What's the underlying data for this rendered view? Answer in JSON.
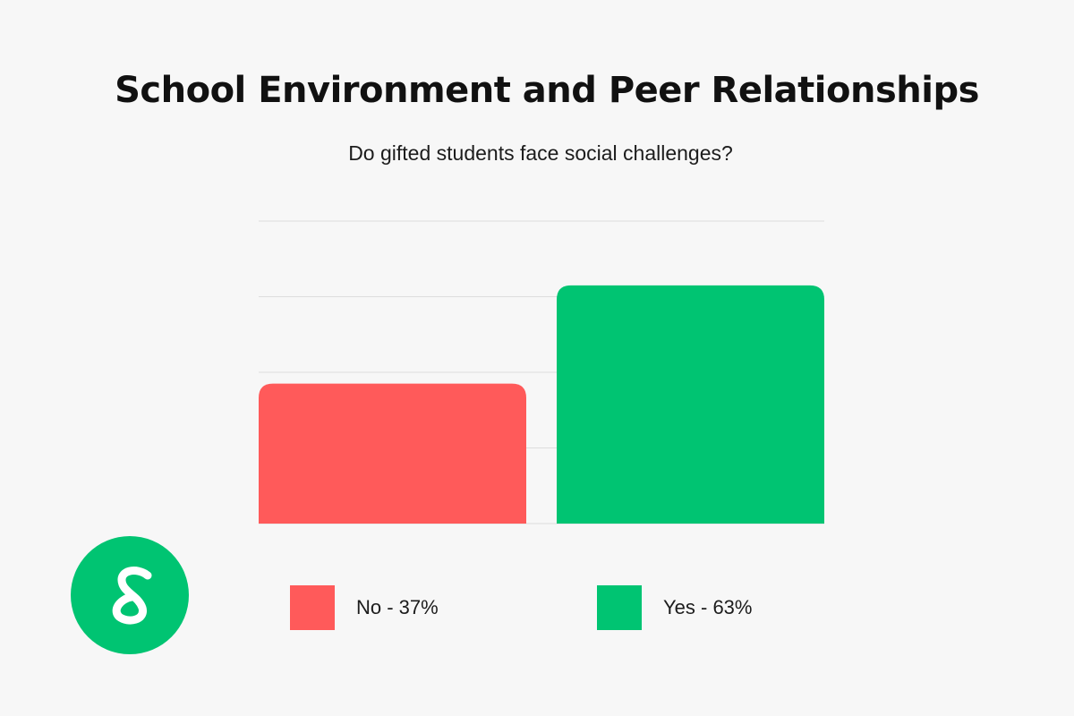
{
  "title": "School Environment and Peer Relationships",
  "subtitle": "Do gifted students face social challenges?",
  "chart_data": {
    "type": "bar",
    "categories": [
      "No",
      "Yes"
    ],
    "values": [
      37,
      63
    ],
    "ylim": [
      0,
      80
    ],
    "grid": true,
    "legend_position": "bottom",
    "colors": [
      "#ff5a5a",
      "#00c472"
    ],
    "legend": [
      "No - 37%",
      "Yes - 63%"
    ]
  },
  "colors": {
    "background": "#f7f7f7",
    "brand": "#00c472",
    "gridline": "#dddddd"
  },
  "logo": {
    "icon": "brand-logo-icon"
  }
}
